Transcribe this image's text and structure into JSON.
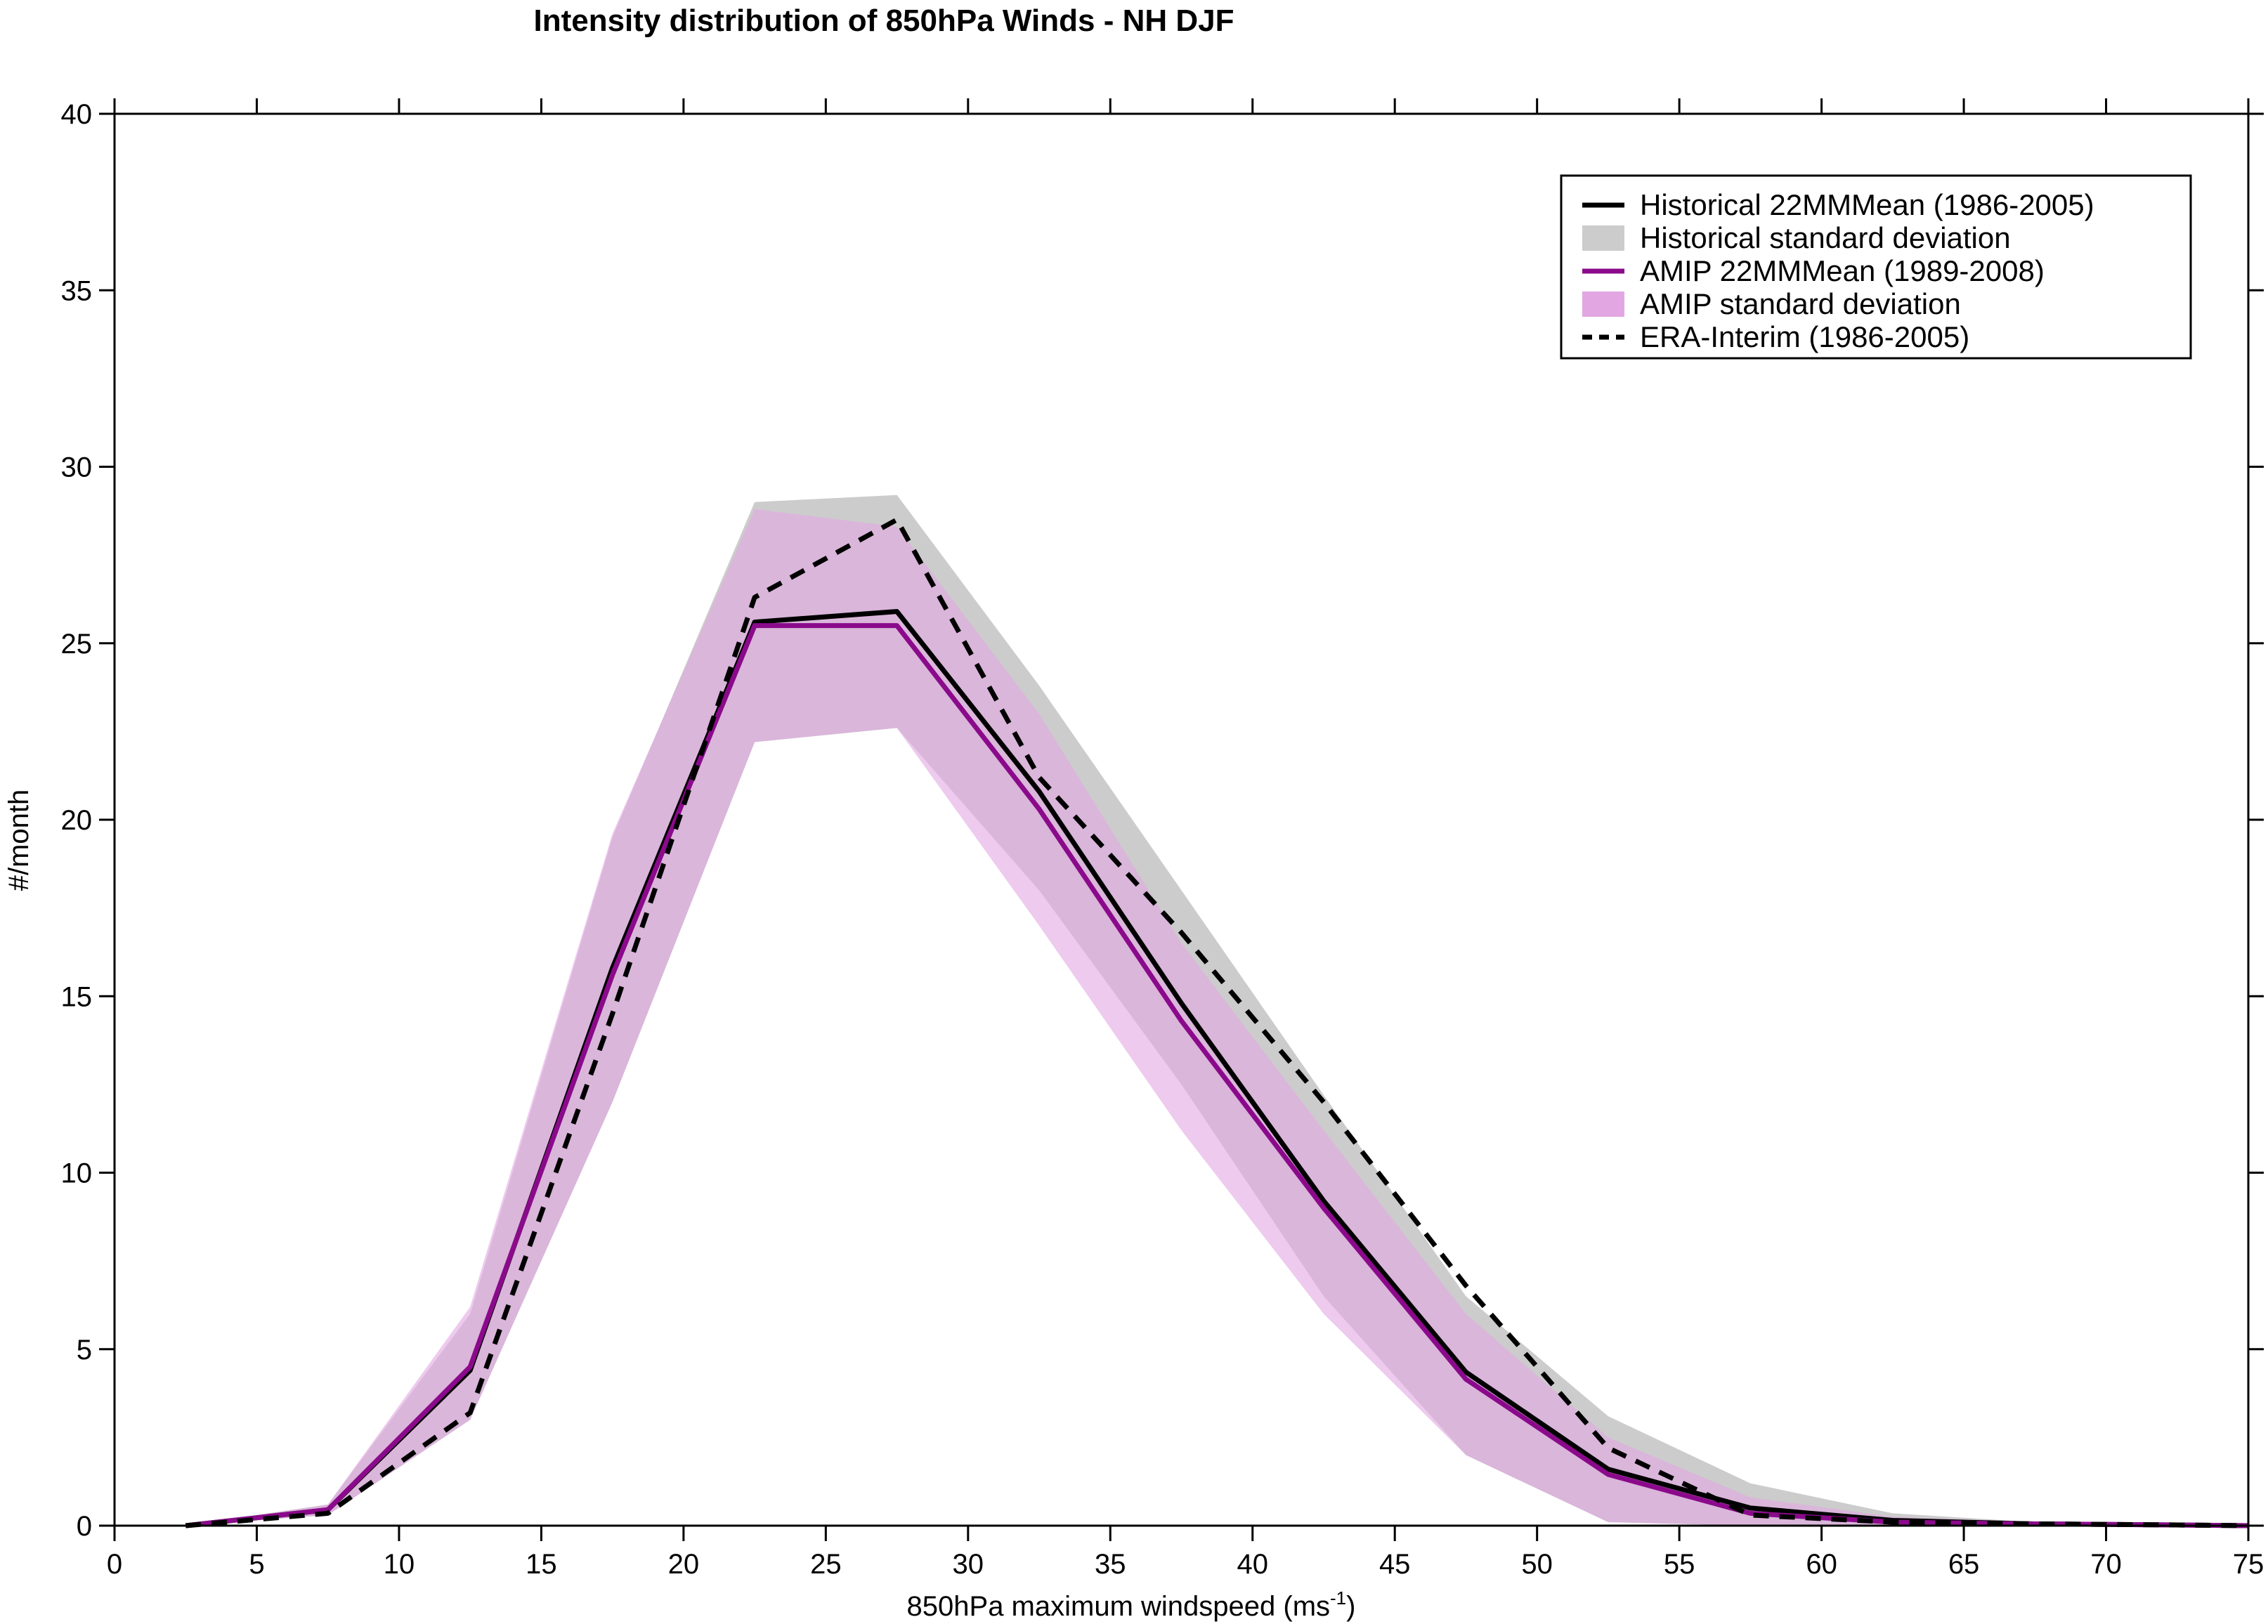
{
  "chart_data": {
    "type": "line",
    "title": "Intensity distribution of 850hPa Winds - NH DJF",
    "xlabel_main": "850hPa maximum windspeed (ms",
    "xlabel_sup": "-1",
    "xlabel_close": ")",
    "ylabel": "#/month",
    "xlim": [
      0,
      75
    ],
    "ylim": [
      0,
      40
    ],
    "xticks": [
      "0",
      "5",
      "10",
      "15",
      "20",
      "25",
      "30",
      "35",
      "40",
      "45",
      "50",
      "55",
      "60",
      "65",
      "70",
      "75"
    ],
    "yticks": [
      "0",
      "5",
      "10",
      "15",
      "20",
      "25",
      "30",
      "35",
      "40"
    ],
    "grid": false,
    "legend_position": "top-right",
    "x": [
      2.5,
      7.5,
      12.5,
      17.5,
      22.5,
      27.5,
      32.5,
      37.5,
      42.5,
      47.5,
      52.5,
      57.5,
      62.5,
      67.5,
      72.5,
      75
    ],
    "bands": [
      {
        "name": "Historical standard deviation",
        "color": "#cccccc",
        "lower": [
          0,
          0.3,
          3.0,
          12.0,
          22.2,
          22.6,
          18.0,
          12.5,
          6.5,
          2.0,
          0.1,
          0.0,
          0.0,
          0.0,
          0.0,
          0.0
        ],
        "upper": [
          0,
          0.6,
          6.0,
          19.5,
          29.0,
          29.2,
          23.8,
          18.0,
          12.2,
          6.5,
          3.1,
          1.2,
          0.35,
          0.1,
          0.05,
          0.0
        ]
      },
      {
        "name": "AMIP standard deviation",
        "color": "#e2a7e2",
        "lower": [
          0,
          0.3,
          3.0,
          12.0,
          22.2,
          22.6,
          17.0,
          11.2,
          6.0,
          2.0,
          0.1,
          0.0,
          0.0,
          0.0,
          0.0,
          0.0
        ],
        "upper": [
          0,
          0.6,
          6.2,
          19.6,
          28.8,
          28.3,
          23.0,
          16.5,
          11.2,
          6.0,
          2.5,
          0.8,
          0.25,
          0.1,
          0.05,
          0.0
        ]
      }
    ],
    "series": [
      {
        "name": "Historical 22MMMean (1986-2005)",
        "color": "#000000",
        "style": "solid",
        "values": [
          0,
          0.45,
          4.4,
          15.8,
          25.6,
          25.9,
          20.8,
          14.8,
          9.2,
          4.35,
          1.6,
          0.5,
          0.15,
          0.05,
          0.02,
          0.0
        ]
      },
      {
        "name": "AMIP 22MMMean (1989-2008)",
        "color": "#8b0a8b",
        "style": "solid",
        "values": [
          0,
          0.45,
          4.5,
          15.6,
          25.5,
          25.5,
          20.3,
          14.3,
          9.0,
          4.15,
          1.45,
          0.35,
          0.1,
          0.05,
          0.02,
          0.0
        ]
      },
      {
        "name": "ERA-Interim (1986-2005)",
        "color": "#000000",
        "style": "dashed",
        "values": [
          0,
          0.35,
          3.2,
          14.5,
          26.3,
          28.5,
          21.2,
          16.8,
          12.0,
          6.8,
          2.2,
          0.3,
          0.1,
          0.05,
          0.02,
          0.0
        ]
      }
    ],
    "legend": [
      {
        "label": "Historical 22MMMean (1986-2005)",
        "kind": "line",
        "color": "#000000",
        "style": "solid"
      },
      {
        "label": "Historical standard deviation",
        "kind": "patch",
        "color": "#cccccc"
      },
      {
        "label": "AMIP 22MMMean (1989-2008)",
        "kind": "line",
        "color": "#8b0a8b",
        "style": "solid"
      },
      {
        "label": "AMIP standard deviation",
        "kind": "patch",
        "color": "#e2a7e2"
      },
      {
        "label": "ERA-Interim (1986-2005)",
        "kind": "line",
        "color": "#000000",
        "style": "dashed"
      }
    ]
  }
}
